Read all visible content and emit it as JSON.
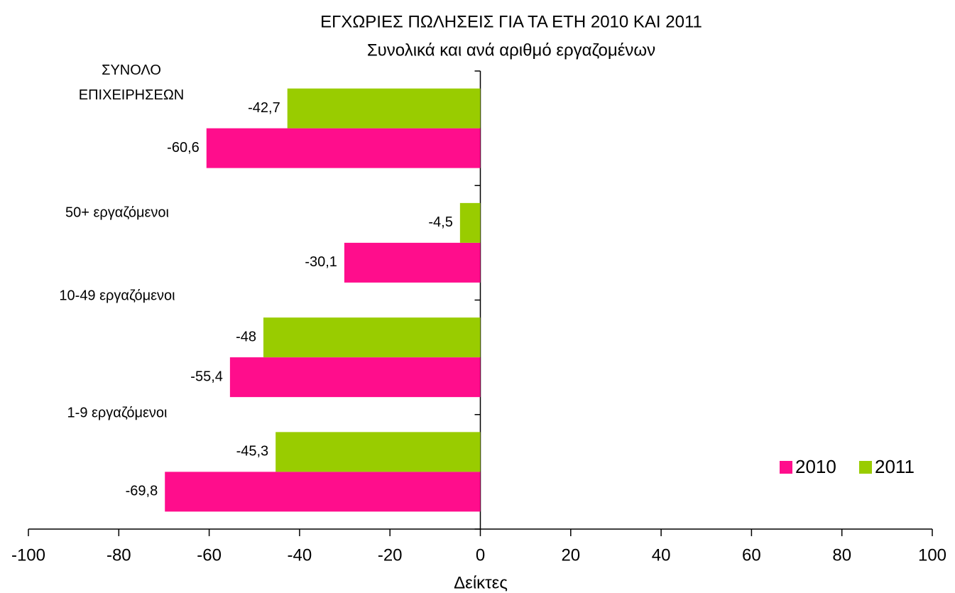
{
  "chart_data": {
    "type": "bar",
    "orientation": "horizontal",
    "title": "ΕΓΧΩΡΙΕΣ ΠΩΛΗΣΕΙΣ ΓΙΑ ΤΑ ΕΤΗ 2010 ΚΑΙ 2011",
    "subtitle": "Συνολικά και ανά αριθμό εργαζομένων",
    "xlabel": "Δείκτες",
    "categories": [
      "ΣΥΝΟΛΟ ΕΠΙΧΕΙΡΗΣΕΩΝ",
      "50+ εργαζόμενοι",
      "10-49 εργαζόμενοι",
      "1-9 εργαζόμενοι"
    ],
    "series": [
      {
        "name": "2010",
        "color": "#ff0d8c",
        "values": [
          -60.6,
          -30.1,
          -55.4,
          -69.8
        ],
        "value_labels": [
          "-60,6",
          "-30,1",
          "-55,4",
          "-69,8"
        ]
      },
      {
        "name": "2011",
        "color": "#99cc00",
        "values": [
          -42.7,
          -4.5,
          -48,
          -45.3
        ],
        "value_labels": [
          "-42,7",
          "-4,5",
          "-48",
          "-45,3"
        ]
      }
    ],
    "xlim": [
      -100,
      100
    ],
    "xticks": [
      -100,
      -80,
      -60,
      -40,
      -20,
      0,
      20,
      40,
      60,
      80,
      100
    ],
    "legend": "right"
  }
}
